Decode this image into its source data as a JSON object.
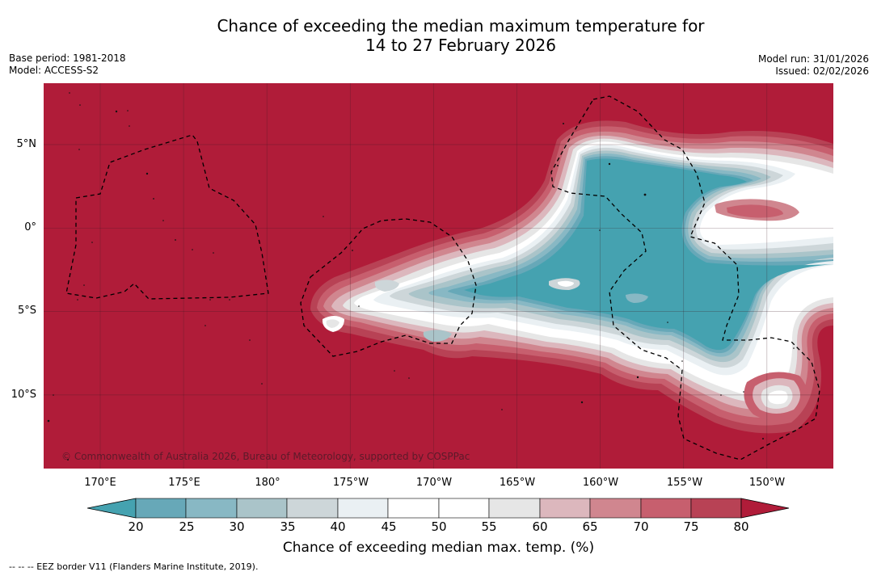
{
  "title": {
    "line1": "Chance of exceeding the median maximum temperature for",
    "line2": "14 to 27 February 2026"
  },
  "meta_left": {
    "base_period": "Base period: 1981-2018",
    "model": "Model: ACCESS-S2"
  },
  "meta_right": {
    "model_run": "Model run: 31/01/2026",
    "issued": "Issued: 02/02/2026"
  },
  "map": {
    "copyright": "© Commonwealth of Australia 2026, Bureau of Meteorology, supported by COSPPac",
    "lat_labels": [
      "5°N",
      "0°",
      "5°S",
      "10°S"
    ],
    "lon_labels": [
      "170°E",
      "175°E",
      "180°",
      "175°W",
      "170°W",
      "165°W",
      "160°W",
      "155°W",
      "150°W"
    ]
  },
  "colorbar": {
    "ticks": [
      "20",
      "25",
      "30",
      "35",
      "40",
      "45",
      "50",
      "55",
      "60",
      "65",
      "70",
      "75",
      "80"
    ],
    "label": "Chance of exceeding median max. temp. (%)",
    "colors": {
      "lt20": "#45a2b0",
      "20-25": "#67a8b8",
      "25-30": "#88b8c4",
      "30-35": "#aac4c9",
      "35-40": "#cdd6d9",
      "40-45": "#eaf0f3",
      "45-55": "#ffffff",
      "55-60": "#e6e6e6",
      "60-65": "#dcb7bd",
      "65-70": "#d0868f",
      "70-75": "#c75f6e",
      "75-80": "#b84255",
      "gt80": "#b01c39"
    }
  },
  "footnote": "--  --  -- EEZ border V11 (Flanders Marine Institute, 2019)."
}
